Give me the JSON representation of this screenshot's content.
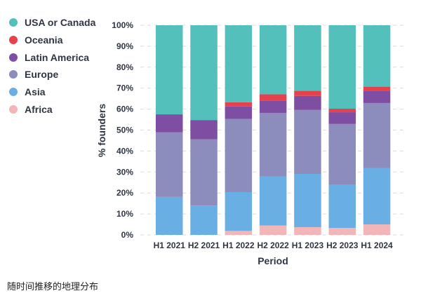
{
  "chart_data": {
    "type": "bar",
    "stacked": true,
    "normalized": true,
    "title": "",
    "xlabel": "Period",
    "ylabel": "% founders",
    "ylim": [
      0,
      100
    ],
    "yticks": [
      "0%",
      "10%",
      "20%",
      "30%",
      "40%",
      "50%",
      "60%",
      "70%",
      "80%",
      "90%",
      "100%"
    ],
    "grid": true,
    "legend_position": "top-left, outside",
    "categories": [
      "H1 2021",
      "H2 2021",
      "H1 2022",
      "H2 2022",
      "H1 2023",
      "H2 2023",
      "H1 2024"
    ],
    "series": [
      {
        "name": "Africa",
        "color": "#f2b5b8",
        "values": [
          0,
          0,
          1.9,
          4.5,
          3.7,
          3.3,
          5.0
        ]
      },
      {
        "name": "Asia",
        "color": "#6aafe3",
        "values": [
          18.1,
          14.0,
          18.5,
          23.3,
          25.4,
          20.5,
          26.8
        ]
      },
      {
        "name": "Europe",
        "color": "#8c8cbd",
        "values": [
          30.8,
          31.6,
          34.9,
          30.4,
          30.5,
          29.1,
          31.1
        ]
      },
      {
        "name": "Latin America",
        "color": "#7e4ea3",
        "values": [
          8.6,
          9.2,
          6.0,
          5.9,
          6.7,
          5.6,
          5.8
        ]
      },
      {
        "name": "Oceania",
        "color": "#e5424d",
        "values": [
          0,
          0,
          2.0,
          3.0,
          2.4,
          1.7,
          2.0
        ]
      },
      {
        "name": "USA or Canada",
        "color": "#54c0bb",
        "values": [
          42.5,
          45.2,
          36.7,
          32.9,
          31.3,
          39.8,
          29.3
        ]
      }
    ],
    "legend_order": [
      "USA or Canada",
      "Oceania",
      "Latin America",
      "Europe",
      "Asia",
      "Africa"
    ]
  },
  "caption": "随时间推移的地理分布"
}
